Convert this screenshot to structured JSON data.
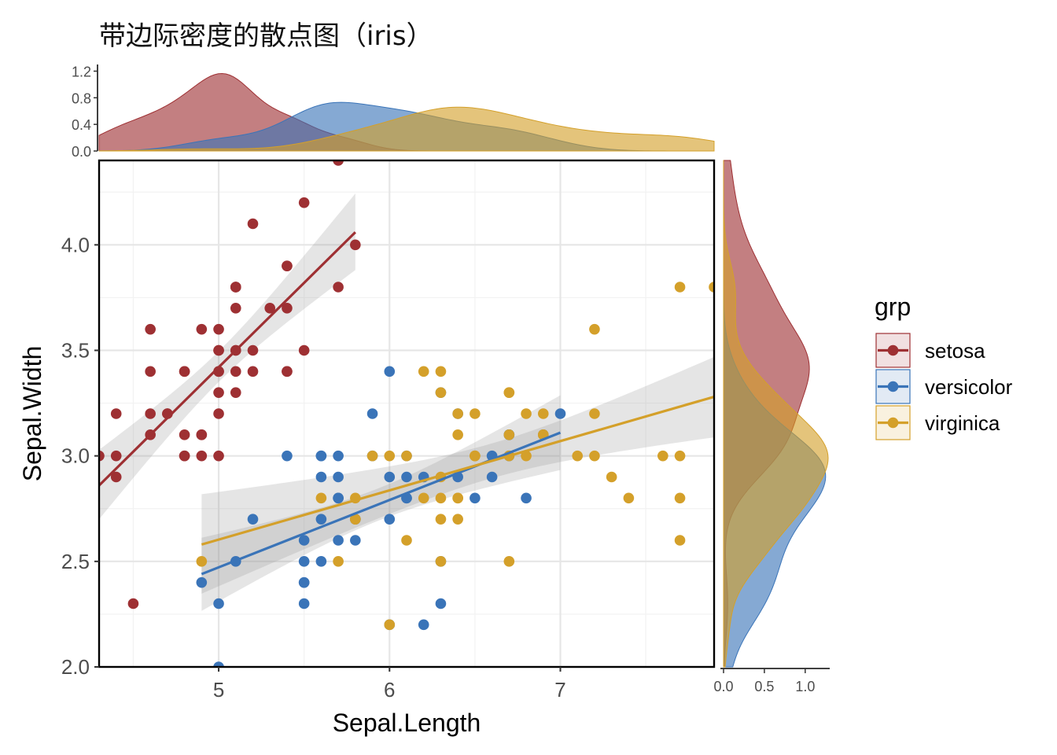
{
  "chart_data": {
    "type": "scatter",
    "title": "带边际密度的散点图（iris）",
    "xlabel": "Sepal.Length",
    "ylabel": "Sepal.Width",
    "xlim": [
      4.3,
      7.9
    ],
    "ylim": [
      2.0,
      4.4
    ],
    "xticks": [
      5,
      6,
      7
    ],
    "yticks": [
      2.0,
      2.5,
      3.0,
      3.5,
      4.0
    ],
    "grid": true,
    "legend": {
      "title": "grp",
      "placement": "right"
    },
    "top_density": {
      "yticks": [
        0.0,
        0.4,
        0.8,
        1.2
      ],
      "ylim": [
        0,
        1.3
      ]
    },
    "right_density": {
      "xticks": [
        0.0,
        0.5,
        1.0
      ],
      "xlim": [
        0,
        1.3
      ]
    },
    "colors": {
      "setosa": "#9e3033",
      "versicolor": "#3a74b8",
      "virginica": "#d4a02a"
    },
    "series": [
      {
        "name": "setosa",
        "x": [
          5.1,
          4.9,
          4.7,
          4.6,
          5.0,
          5.4,
          4.6,
          5.0,
          4.4,
          4.9,
          5.4,
          4.8,
          4.8,
          4.3,
          5.8,
          5.7,
          5.4,
          5.1,
          5.7,
          5.1,
          5.4,
          5.1,
          4.6,
          5.1,
          4.8,
          5.0,
          5.0,
          5.2,
          5.2,
          4.7,
          4.8,
          5.4,
          5.2,
          5.5,
          4.9,
          5.0,
          5.5,
          4.9,
          4.4,
          5.1,
          5.0,
          4.5,
          4.4,
          5.0,
          5.1,
          4.8,
          5.1,
          4.6,
          5.3,
          5.0
        ],
        "y": [
          3.5,
          3.0,
          3.2,
          3.1,
          3.6,
          3.9,
          3.4,
          3.4,
          2.9,
          3.1,
          3.7,
          3.4,
          3.0,
          3.0,
          4.0,
          4.4,
          3.9,
          3.5,
          3.8,
          3.8,
          3.4,
          3.7,
          3.6,
          3.3,
          3.4,
          3.0,
          3.4,
          3.5,
          3.4,
          3.2,
          3.1,
          3.4,
          4.1,
          4.2,
          3.1,
          3.2,
          3.5,
          3.6,
          3.0,
          3.4,
          3.5,
          2.3,
          3.2,
          3.5,
          3.8,
          3.0,
          3.8,
          3.2,
          3.7,
          3.3
        ],
        "fit": {
          "x": [
            4.3,
            5.8
          ],
          "y": [
            2.86,
            4.06
          ]
        }
      },
      {
        "name": "versicolor",
        "x": [
          7.0,
          6.4,
          6.9,
          5.5,
          6.5,
          5.7,
          6.3,
          4.9,
          6.6,
          5.2,
          5.0,
          5.9,
          6.0,
          6.1,
          5.6,
          6.7,
          5.6,
          5.8,
          6.2,
          5.6,
          5.9,
          6.1,
          6.3,
          6.1,
          6.4,
          6.6,
          6.8,
          6.7,
          6.0,
          5.7,
          5.5,
          5.5,
          5.8,
          6.0,
          5.4,
          6.0,
          6.7,
          6.3,
          5.6,
          5.5,
          5.5,
          6.1,
          5.8,
          5.0,
          5.6,
          5.7,
          5.7,
          6.2,
          5.1,
          5.7
        ],
        "y": [
          3.2,
          3.2,
          3.1,
          2.3,
          2.8,
          2.8,
          3.3,
          2.4,
          2.9,
          2.7,
          2.0,
          3.0,
          2.2,
          2.9,
          2.9,
          3.1,
          3.0,
          2.7,
          2.2,
          2.5,
          3.2,
          2.8,
          2.5,
          2.8,
          2.9,
          3.0,
          2.8,
          3.0,
          2.9,
          2.6,
          2.4,
          2.4,
          2.7,
          2.7,
          3.0,
          3.4,
          3.1,
          2.3,
          3.0,
          2.5,
          2.6,
          3.0,
          2.6,
          2.3,
          2.7,
          3.0,
          2.9,
          2.9,
          2.5,
          2.8
        ],
        "fit": {
          "x": [
            4.9,
            7.0
          ],
          "y": [
            2.44,
            3.11
          ]
        }
      },
      {
        "name": "virginica",
        "x": [
          6.3,
          5.8,
          7.1,
          6.3,
          6.5,
          7.6,
          4.9,
          7.3,
          6.7,
          7.2,
          6.5,
          6.4,
          6.8,
          5.7,
          5.8,
          6.4,
          6.5,
          7.7,
          7.7,
          6.0,
          6.9,
          5.6,
          7.7,
          6.3,
          6.7,
          7.2,
          6.2,
          6.1,
          6.4,
          7.2,
          7.4,
          7.9,
          6.4,
          6.3,
          6.1,
          7.7,
          6.3,
          6.4,
          6.0,
          6.9,
          6.7,
          6.9,
          5.8,
          6.8,
          6.7,
          6.7,
          6.3,
          6.5,
          6.2,
          5.9
        ],
        "y": [
          3.3,
          2.7,
          3.0,
          2.9,
          3.0,
          3.0,
          2.5,
          2.9,
          2.5,
          3.6,
          3.2,
          2.7,
          3.0,
          2.5,
          2.8,
          3.2,
          3.0,
          3.8,
          2.6,
          2.2,
          3.2,
          2.8,
          2.8,
          2.7,
          3.3,
          3.2,
          2.8,
          3.0,
          2.8,
          3.0,
          2.8,
          3.8,
          2.8,
          2.8,
          2.6,
          3.0,
          3.4,
          3.1,
          3.0,
          3.1,
          3.1,
          3.1,
          2.7,
          3.2,
          3.3,
          3.0,
          2.5,
          3.0,
          3.4,
          3.0
        ],
        "fit": {
          "x": [
            4.9,
            7.9
          ],
          "y": [
            2.58,
            3.28
          ]
        }
      }
    ]
  }
}
